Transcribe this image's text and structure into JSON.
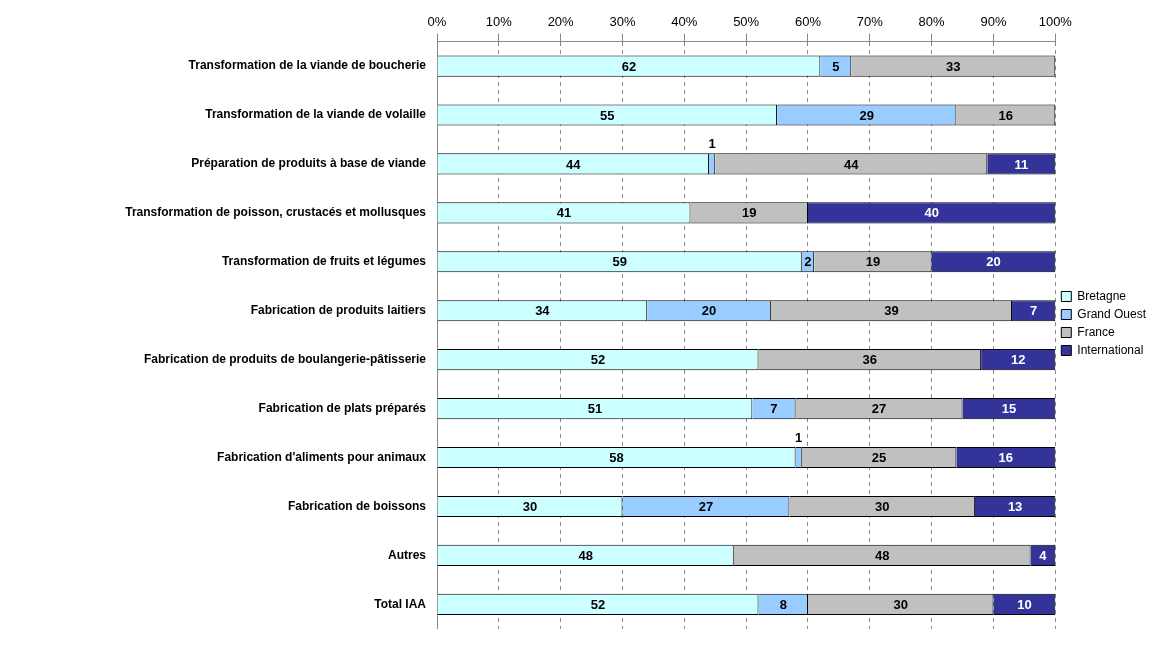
{
  "chart_data": {
    "type": "bar",
    "orientation": "horizontal",
    "stacked": true,
    "categories": [
      "Transformation de la viande de boucherie",
      "Transformation de la viande de volaille",
      "Préparation de produits à base de viande",
      "Transformation de poisson, crustacés et mollusques",
      "Transformation de fruits et légumes",
      "Fabrication de produits laitiers",
      "Fabrication de produits de boulangerie-pâtisserie",
      "Fabrication de plats préparés",
      "Fabrication d'aliments pour animaux",
      "Fabrication de boissons",
      "Autres",
      "Total IAA"
    ],
    "series": [
      {
        "name": "Bretagne",
        "color": "#ccffff",
        "values": [
          62,
          55,
          44,
          41,
          59,
          34,
          52,
          51,
          58,
          30,
          48,
          52
        ]
      },
      {
        "name": "Grand Ouest",
        "color": "#99ccff",
        "values": [
          5,
          29,
          1,
          null,
          2,
          20,
          null,
          7,
          1,
          27,
          null,
          8
        ]
      },
      {
        "name": "France",
        "color": "#c0c0c0",
        "values": [
          33,
          16,
          44,
          19,
          19,
          39,
          36,
          27,
          25,
          30,
          48,
          30
        ]
      },
      {
        "name": "International",
        "color": "#333399",
        "values": [
          null,
          null,
          11,
          40,
          20,
          7,
          12,
          15,
          16,
          13,
          4,
          10
        ]
      }
    ],
    "xlim": [
      0,
      100
    ],
    "xticks": [
      {
        "value": 0,
        "label": "0%"
      },
      {
        "value": 10,
        "label": "10%"
      },
      {
        "value": 20,
        "label": "20%"
      },
      {
        "value": 30,
        "label": "30%"
      },
      {
        "value": 40,
        "label": "40%"
      },
      {
        "value": 50,
        "label": "50%"
      },
      {
        "value": 60,
        "label": "60%"
      },
      {
        "value": 70,
        "label": "70%"
      },
      {
        "value": 80,
        "label": "80%"
      },
      {
        "value": 90,
        "label": "90%"
      },
      {
        "value": 100,
        "label": "100%"
      }
    ],
    "grid": "x",
    "legend": "right",
    "data_labels": true
  }
}
